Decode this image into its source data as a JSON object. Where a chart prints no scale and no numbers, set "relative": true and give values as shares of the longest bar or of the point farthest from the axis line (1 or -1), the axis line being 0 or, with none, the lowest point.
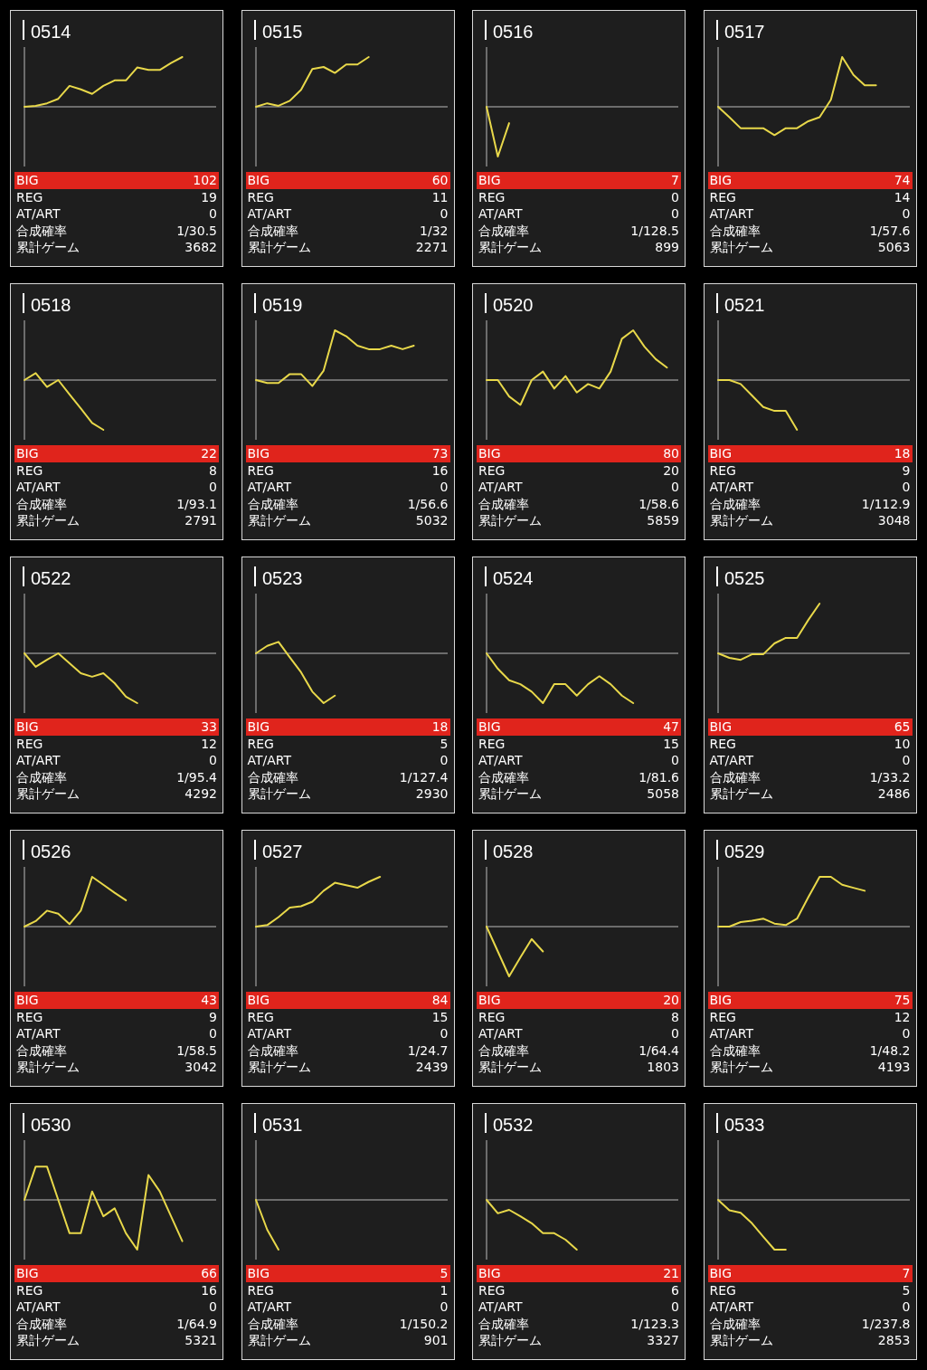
{
  "chart_data": [
    {
      "type": "line",
      "title": "0514",
      "relative": true,
      "color": "#e8d84a",
      "categories": [
        null,
        null,
        null,
        null,
        null,
        null,
        null,
        null,
        null,
        null,
        null,
        null,
        null,
        null,
        null,
        null,
        null,
        null
      ],
      "values": [
        0,
        0.02,
        0.07,
        0.16,
        0.42,
        0.35,
        0.26,
        0.42,
        0.53,
        0.53,
        0.79,
        0.74,
        0.74,
        0.88,
        1,
        null,
        null,
        null
      ]
    },
    {
      "type": "other",
      "annotations": [
        "BIG",
        "102",
        "REG",
        "19",
        "AT/ART",
        "0",
        "合成確率",
        "1/30.5",
        "累計ゲーム",
        "3682"
      ]
    },
    {
      "type": "line",
      "title": "0515",
      "relative": true,
      "color": "#e8d84a",
      "categories": [
        null,
        null,
        null,
        null,
        null,
        null,
        null,
        null,
        null,
        null,
        null,
        null,
        null,
        null,
        null,
        null,
        null,
        null
      ],
      "values": [
        0,
        0.07,
        0.02,
        0.12,
        0.34,
        0.76,
        0.8,
        0.68,
        0.85,
        0.85,
        1,
        null,
        null,
        null,
        null,
        null,
        null,
        null
      ]
    },
    {
      "type": "other",
      "annotations": [
        "BIG",
        "60",
        "REG",
        "11",
        "AT/ART",
        "0",
        "合成確率",
        "1/32",
        "累計ゲーム",
        "2271"
      ]
    },
    {
      "type": "line",
      "title": "0516",
      "relative": true,
      "color": "#e8d84a",
      "categories": [
        null,
        null,
        null,
        null,
        null,
        null,
        null,
        null,
        null,
        null,
        null,
        null,
        null,
        null,
        null,
        null,
        null,
        null
      ],
      "values": [
        0,
        -1,
        -0.33,
        null,
        null,
        null,
        null,
        null,
        null,
        null,
        null,
        null,
        null,
        null,
        null,
        null,
        null,
        null
      ]
    },
    {
      "type": "other",
      "annotations": [
        "BIG",
        "7",
        "REG",
        "0",
        "AT/ART",
        "0",
        "合成確率",
        "1/128.5",
        "累計ゲーム",
        "899"
      ]
    },
    {
      "type": "line",
      "title": "0517",
      "relative": true,
      "color": "#e8d84a",
      "categories": [
        null,
        null,
        null,
        null,
        null,
        null,
        null,
        null,
        null,
        null,
        null,
        null,
        null,
        null,
        null,
        null,
        null,
        null
      ],
      "values": [
        0,
        -0.21,
        -0.43,
        -0.43,
        -0.43,
        -0.57,
        -0.43,
        -0.43,
        -0.29,
        -0.21,
        0.14,
        1,
        0.64,
        0.43,
        0.43,
        null,
        null,
        null
      ]
    },
    {
      "type": "other",
      "annotations": [
        "BIG",
        "74",
        "REG",
        "14",
        "AT/ART",
        "0",
        "合成確率",
        "1/57.6",
        "累計ゲーム",
        "5063"
      ]
    },
    {
      "type": "line",
      "title": "0518",
      "relative": true,
      "color": "#e8d84a",
      "categories": [
        null,
        null,
        null,
        null,
        null,
        null,
        null,
        null,
        null,
        null,
        null,
        null,
        null,
        null,
        null,
        null,
        null,
        null
      ],
      "values": [
        0,
        0.14,
        -0.14,
        0,
        -0.29,
        -0.57,
        -0.86,
        -1,
        null,
        null,
        null,
        null,
        null,
        null,
        null,
        null,
        null,
        null
      ]
    },
    {
      "type": "other",
      "annotations": [
        "BIG",
        "22",
        "REG",
        "8",
        "AT/ART",
        "0",
        "合成確率",
        "1/93.1",
        "累計ゲーム",
        "2791"
      ]
    },
    {
      "type": "line",
      "title": "0519",
      "relative": true,
      "color": "#e8d84a",
      "categories": [
        null,
        null,
        null,
        null,
        null,
        null,
        null,
        null,
        null,
        null,
        null,
        null,
        null,
        null,
        null,
        null,
        null,
        null
      ],
      "values": [
        0,
        -0.06,
        -0.06,
        0.12,
        0.12,
        -0.12,
        0.19,
        1,
        0.88,
        0.69,
        0.62,
        0.62,
        0.69,
        0.62,
        0.69,
        null,
        null,
        null
      ]
    },
    {
      "type": "other",
      "annotations": [
        "BIG",
        "73",
        "REG",
        "16",
        "AT/ART",
        "0",
        "合成確率",
        "1/56.6",
        "累計ゲーム",
        "5032"
      ]
    },
    {
      "type": "line",
      "title": "0520",
      "relative": true,
      "color": "#e8d84a",
      "categories": [
        null,
        null,
        null,
        null,
        null,
        null,
        null,
        null,
        null,
        null,
        null,
        null,
        null,
        null,
        null,
        null,
        null,
        null
      ],
      "values": [
        0,
        0,
        -0.33,
        -0.5,
        0,
        0.17,
        -0.17,
        0.08,
        -0.25,
        -0.08,
        -0.17,
        0.17,
        0.83,
        1,
        0.67,
        0.42,
        0.25,
        null
      ]
    },
    {
      "type": "other",
      "annotations": [
        "BIG",
        "80",
        "REG",
        "20",
        "AT/ART",
        "0",
        "合成確率",
        "1/58.6",
        "累計ゲーム",
        "5859"
      ]
    },
    {
      "type": "line",
      "title": "0521",
      "relative": true,
      "color": "#e8d84a",
      "categories": [
        null,
        null,
        null,
        null,
        null,
        null,
        null,
        null,
        null,
        null,
        null,
        null,
        null,
        null,
        null,
        null,
        null,
        null
      ],
      "values": [
        0,
        0,
        -0.08,
        -0.31,
        -0.54,
        -0.62,
        -0.62,
        -1,
        null,
        null,
        null,
        null,
        null,
        null,
        null,
        null,
        null,
        null
      ]
    },
    {
      "type": "other",
      "annotations": [
        "BIG",
        "18",
        "REG",
        "9",
        "AT/ART",
        "0",
        "合成確率",
        "1/112.9",
        "累計ゲーム",
        "3048"
      ]
    },
    {
      "type": "line",
      "title": "0522",
      "relative": true,
      "color": "#e8d84a",
      "categories": [
        null,
        null,
        null,
        null,
        null,
        null,
        null,
        null,
        null,
        null,
        null,
        null,
        null,
        null,
        null,
        null,
        null,
        null
      ],
      "values": [
        0,
        -0.27,
        -0.13,
        0,
        -0.2,
        -0.4,
        -0.47,
        -0.4,
        -0.6,
        -0.87,
        -1,
        null,
        null,
        null,
        null,
        null,
        null,
        null
      ]
    },
    {
      "type": "other",
      "annotations": [
        "BIG",
        "33",
        "REG",
        "12",
        "AT/ART",
        "0",
        "合成確率",
        "1/95.4",
        "累計ゲーム",
        "4292"
      ]
    },
    {
      "type": "line",
      "title": "0523",
      "relative": true,
      "color": "#e8d84a",
      "categories": [
        null,
        null,
        null,
        null,
        null,
        null,
        null,
        null,
        null,
        null,
        null,
        null,
        null,
        null,
        null,
        null,
        null,
        null
      ],
      "values": [
        0,
        0.15,
        0.23,
        -0.08,
        -0.38,
        -0.77,
        -1,
        -0.85,
        null,
        null,
        null,
        null,
        null,
        null,
        null,
        null,
        null,
        null
      ]
    },
    {
      "type": "other",
      "annotations": [
        "BIG",
        "18",
        "REG",
        "5",
        "AT/ART",
        "0",
        "合成確率",
        "1/127.4",
        "累計ゲーム",
        "2930"
      ]
    },
    {
      "type": "line",
      "title": "0524",
      "relative": true,
      "color": "#e8d84a",
      "categories": [
        null,
        null,
        null,
        null,
        null,
        null,
        null,
        null,
        null,
        null,
        null,
        null,
        null,
        null,
        null,
        null,
        null,
        null
      ],
      "values": [
        0,
        -0.31,
        -0.54,
        -0.62,
        -0.77,
        -1,
        -0.62,
        -0.62,
        -0.85,
        -0.62,
        -0.46,
        -0.62,
        -0.85,
        -1,
        null,
        null,
        null,
        null
      ]
    },
    {
      "type": "other",
      "annotations": [
        "BIG",
        "47",
        "REG",
        "15",
        "AT/ART",
        "0",
        "合成確率",
        "1/81.6",
        "累計ゲーム",
        "5058"
      ]
    },
    {
      "type": "line",
      "title": "0525",
      "relative": true,
      "color": "#e8d84a",
      "categories": [
        null,
        null,
        null,
        null,
        null,
        null,
        null,
        null,
        null,
        null,
        null,
        null,
        null,
        null,
        null,
        null,
        null,
        null
      ],
      "values": [
        0,
        -0.09,
        -0.13,
        -0.02,
        -0.02,
        0.2,
        0.31,
        0.31,
        0.67,
        1,
        null,
        null,
        null,
        null,
        null,
        null,
        null,
        null
      ]
    },
    {
      "type": "other",
      "annotations": [
        "BIG",
        "65",
        "REG",
        "10",
        "AT/ART",
        "0",
        "合成確率",
        "1/33.2",
        "累計ゲーム",
        "2486"
      ]
    },
    {
      "type": "line",
      "title": "0526",
      "relative": true,
      "color": "#e8d84a",
      "categories": [
        null,
        null,
        null,
        null,
        null,
        null,
        null,
        null,
        null,
        null,
        null,
        null,
        null,
        null,
        null,
        null,
        null,
        null
      ],
      "values": [
        0,
        0.11,
        0.32,
        0.26,
        0.05,
        0.32,
        1,
        0.84,
        0.68,
        0.53,
        null,
        null,
        null,
        null,
        null,
        null,
        null,
        null
      ]
    },
    {
      "type": "other",
      "annotations": [
        "BIG",
        "43",
        "REG",
        "9",
        "AT/ART",
        "0",
        "合成確率",
        "1/58.5",
        "累計ゲーム",
        "3042"
      ]
    },
    {
      "type": "line",
      "title": "0527",
      "relative": true,
      "color": "#e8d84a",
      "categories": [
        null,
        null,
        null,
        null,
        null,
        null,
        null,
        null,
        null,
        null,
        null,
        null,
        null,
        null,
        null,
        null,
        null,
        null
      ],
      "values": [
        0,
        0.03,
        0.19,
        0.38,
        0.41,
        0.5,
        0.72,
        0.88,
        0.83,
        0.78,
        0.9,
        1,
        null,
        null,
        null,
        null,
        null,
        null
      ]
    },
    {
      "type": "other",
      "annotations": [
        "BIG",
        "84",
        "REG",
        "15",
        "AT/ART",
        "0",
        "合成確率",
        "1/24.7",
        "累計ゲーム",
        "2439"
      ]
    },
    {
      "type": "line",
      "title": "0528",
      "relative": true,
      "color": "#e8d84a",
      "categories": [
        null,
        null,
        null,
        null,
        null,
        null,
        null,
        null,
        null,
        null,
        null,
        null,
        null,
        null,
        null,
        null,
        null,
        null
      ],
      "values": [
        0,
        -0.5,
        -1,
        -0.62,
        -0.25,
        -0.5,
        null,
        null,
        null,
        null,
        null,
        null,
        null,
        null,
        null,
        null,
        null,
        null
      ]
    },
    {
      "type": "other",
      "annotations": [
        "BIG",
        "20",
        "REG",
        "8",
        "AT/ART",
        "0",
        "合成確率",
        "1/64.4",
        "累計ゲーム",
        "1803"
      ]
    },
    {
      "type": "line",
      "title": "0529",
      "relative": true,
      "color": "#e8d84a",
      "categories": [
        null,
        null,
        null,
        null,
        null,
        null,
        null,
        null,
        null,
        null,
        null,
        null,
        null,
        null,
        null,
        null,
        null,
        null
      ],
      "values": [
        0,
        0,
        0.09,
        0.12,
        0.16,
        0.06,
        0.03,
        0.16,
        0.59,
        1,
        1,
        0.84,
        0.78,
        0.72,
        null,
        null,
        null,
        null
      ]
    },
    {
      "type": "other",
      "annotations": [
        "BIG",
        "75",
        "REG",
        "12",
        "AT/ART",
        "0",
        "合成確率",
        "1/48.2",
        "累計ゲーム",
        "4193"
      ]
    },
    {
      "type": "line",
      "title": "0530",
      "relative": true,
      "color": "#e8d84a",
      "categories": [
        null,
        null,
        null,
        null,
        null,
        null,
        null,
        null,
        null,
        null,
        null,
        null,
        null,
        null,
        null,
        null,
        null,
        null
      ],
      "values": [
        0,
        0.67,
        0.67,
        0,
        -0.67,
        -0.67,
        0.17,
        -0.33,
        -0.17,
        -0.67,
        -1,
        0.5,
        0.17,
        -0.33,
        -0.83,
        null,
        null,
        null
      ]
    },
    {
      "type": "other",
      "annotations": [
        "BIG",
        "66",
        "REG",
        "16",
        "AT/ART",
        "0",
        "合成確率",
        "1/64.9",
        "累計ゲーム",
        "5321"
      ]
    },
    {
      "type": "line",
      "title": "0531",
      "relative": true,
      "color": "#e8d84a",
      "categories": [
        null,
        null,
        null,
        null,
        null,
        null,
        null,
        null,
        null,
        null,
        null,
        null,
        null,
        null,
        null,
        null,
        null,
        null
      ],
      "values": [
        0,
        -0.6,
        -1,
        null,
        null,
        null,
        null,
        null,
        null,
        null,
        null,
        null,
        null,
        null,
        null,
        null,
        null,
        null
      ]
    },
    {
      "type": "other",
      "annotations": [
        "BIG",
        "5",
        "REG",
        "1",
        "AT/ART",
        "0",
        "合成確率",
        "1/150.2",
        "累計ゲーム",
        "901"
      ]
    },
    {
      "type": "line",
      "title": "0532",
      "relative": true,
      "color": "#e8d84a",
      "categories": [
        null,
        null,
        null,
        null,
        null,
        null,
        null,
        null,
        null,
        null,
        null,
        null,
        null,
        null,
        null,
        null,
        null,
        null
      ],
      "values": [
        0,
        -0.27,
        -0.2,
        -0.33,
        -0.47,
        -0.67,
        -0.67,
        -0.8,
        -1,
        null,
        null,
        null,
        null,
        null,
        null,
        null,
        null,
        null
      ]
    },
    {
      "type": "other",
      "annotations": [
        "BIG",
        "21",
        "REG",
        "6",
        "AT/ART",
        "0",
        "合成確率",
        "1/123.3",
        "累計ゲーム",
        "3327"
      ]
    },
    {
      "type": "line",
      "title": "0533",
      "relative": true,
      "color": "#e8d84a",
      "categories": [
        null,
        null,
        null,
        null,
        null,
        null,
        null,
        null,
        null,
        null,
        null,
        null,
        null,
        null,
        null,
        null,
        null,
        null
      ],
      "values": [
        0,
        -0.21,
        -0.26,
        -0.47,
        -0.74,
        -1,
        -1,
        null,
        null,
        null,
        null,
        null,
        null,
        null,
        null,
        null,
        null,
        null
      ]
    },
    {
      "type": "other",
      "annotations": [
        "BIG",
        "7",
        "REG",
        "5",
        "AT/ART",
        "0",
        "合成確率",
        "1/237.8",
        "累計ゲーム",
        "2853"
      ]
    }
  ]
}
